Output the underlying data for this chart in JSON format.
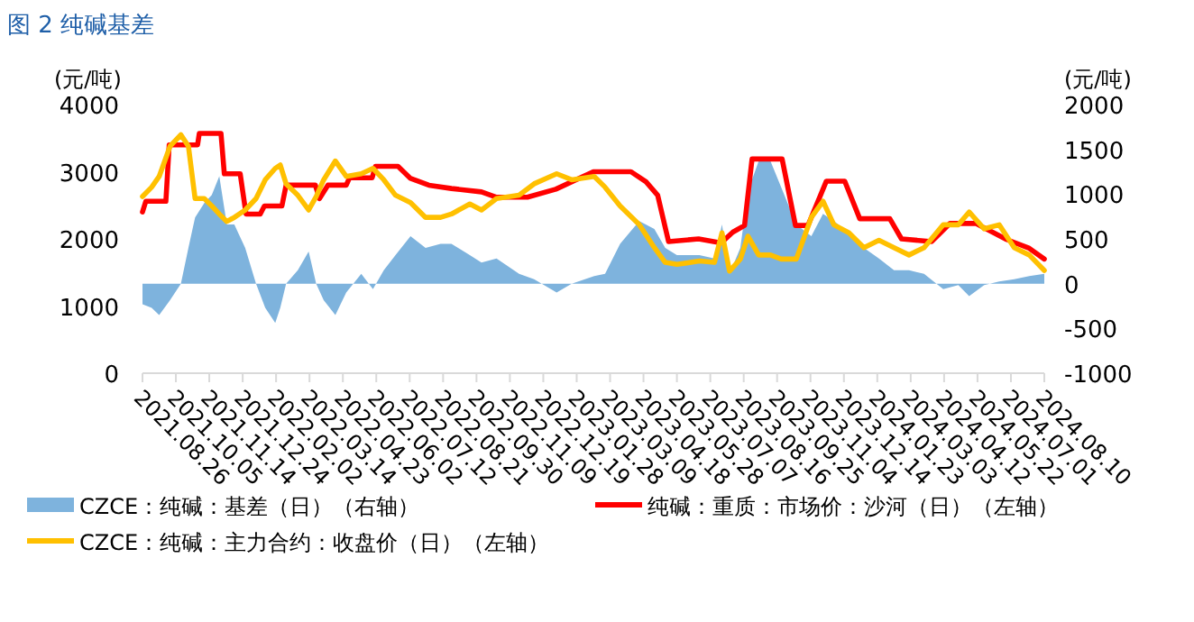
{
  "chart_data": {
    "type": "line",
    "title": "图 2  纯碱基差",
    "ylabel": "(元/吨)",
    "y2label": "(元/吨)",
    "legend": "bottom",
    "grid": false,
    "marker": "none",
    "line_style": "solid",
    "xlim": [
      "2021-08-26",
      "2024-08-10"
    ],
    "xticks": [
      {
        "value": "2021-08-26",
        "label": "2021.08.26"
      },
      {
        "value": "2021-10-05",
        "label": "2021.10.05"
      },
      {
        "value": "2021-11-14",
        "label": "2021.11.14"
      },
      {
        "value": "2021-12-24",
        "label": "2021.12.24"
      },
      {
        "value": "2022-02-02",
        "label": "2022.02.02"
      },
      {
        "value": "2022-03-14",
        "label": "2022.03.14"
      },
      {
        "value": "2022-04-23",
        "label": "2022.04.23"
      },
      {
        "value": "2022-06-02",
        "label": "2022.06.02"
      },
      {
        "value": "2022-07-12",
        "label": "2022.07.12"
      },
      {
        "value": "2022-08-21",
        "label": "2022.08.21"
      },
      {
        "value": "2022-09-30",
        "label": "2022.09.30"
      },
      {
        "value": "2022-11-09",
        "label": "2022.11.09"
      },
      {
        "value": "2022-12-19",
        "label": "2022.12.19"
      },
      {
        "value": "2023-01-28",
        "label": "2023.01.28"
      },
      {
        "value": "2023-03-09",
        "label": "2023.03.09"
      },
      {
        "value": "2023-04-18",
        "label": "2023.04.18"
      },
      {
        "value": "2023-05-28",
        "label": "2023.05.28"
      },
      {
        "value": "2023-07-07",
        "label": "2023.07.07"
      },
      {
        "value": "2023-08-16",
        "label": "2023.08.16"
      },
      {
        "value": "2023-09-25",
        "label": "2023.09.25"
      },
      {
        "value": "2023-11-04",
        "label": "2023.11.04"
      },
      {
        "value": "2023-12-14",
        "label": "2023.12.14"
      },
      {
        "value": "2024-01-23",
        "label": "2024.01.23"
      },
      {
        "value": "2024-03-03",
        "label": "2024.03.03"
      },
      {
        "value": "2024-04-12",
        "label": "2024.04.12"
      },
      {
        "value": "2024-05-22",
        "label": "2024.05.22"
      },
      {
        "value": "2024-07-01",
        "label": "2024.07.01"
      },
      {
        "value": "2024-08-10",
        "label": "2024.08.10"
      }
    ],
    "ylim": [
      0,
      4000
    ],
    "yticks": [
      0,
      1000,
      2000,
      3000,
      4000
    ],
    "y2lim": [
      -1000,
      2000
    ],
    "y2ticks": [
      -1000,
      -500,
      0,
      500,
      1000,
      1500,
      2000
    ],
    "x": [
      "2021-08-26",
      "2021-09-06",
      "2021-09-15",
      "2021-09-28",
      "2021-10-11",
      "2021-10-20",
      "2021-10-28",
      "2021-11-08",
      "2021-11-17",
      "2021-11-26",
      "2021-12-05",
      "2021-12-14",
      "2021-12-27",
      "2022-01-09",
      "2022-01-20",
      "2022-02-01",
      "2022-02-07",
      "2022-02-14",
      "2022-02-28",
      "2022-03-13",
      "2022-03-22",
      "2022-03-31",
      "2022-04-14",
      "2022-04-27",
      "2022-05-15",
      "2022-05-29",
      "2022-06-11",
      "2022-06-25",
      "2022-07-13",
      "2022-07-31",
      "2022-08-18",
      "2022-08-31",
      "2022-09-22",
      "2022-10-06",
      "2022-10-24",
      "2022-11-20",
      "2022-12-08",
      "2023-01-04",
      "2023-01-22",
      "2023-02-18",
      "2023-03-03",
      "2023-03-21",
      "2023-04-13",
      "2023-05-01",
      "2023-05-14",
      "2023-05-28",
      "2023-06-24",
      "2023-07-12",
      "2023-07-21",
      "2023-07-30",
      "2023-08-12",
      "2023-08-21",
      "2023-09-03",
      "2023-09-17",
      "2023-09-30",
      "2023-10-18",
      "2023-11-05",
      "2023-11-19",
      "2023-12-02",
      "2023-12-20",
      "2024-01-07",
      "2024-01-25",
      "2024-02-12",
      "2024-03-01",
      "2024-03-19",
      "2024-04-11",
      "2024-04-29",
      "2024-05-12",
      "2024-05-30",
      "2024-06-17",
      "2024-07-05",
      "2024-07-23",
      "2024-08-10"
    ],
    "series": [
      {
        "name": "CZCE：纯碱：基差（日）（右轴）",
        "type": "area",
        "axis": "y2",
        "color": "#7eb3dd",
        "values": [
          -230,
          -270,
          -350,
          -185,
          0,
          400,
          740,
          900,
          990,
          1200,
          660,
          660,
          400,
          0,
          -270,
          -440,
          -270,
          0,
          150,
          360,
          0,
          -185,
          -350,
          -100,
          110,
          -60,
          150,
          320,
          530,
          400,
          445,
          445,
          320,
          235,
          280,
          110,
          50,
          -100,
          0,
          85,
          110,
          445,
          700,
          610,
          400,
          320,
          320,
          280,
          660,
          110,
          400,
          1030,
          1370,
          1370,
          1075,
          660,
          530,
          780,
          700,
          570,
          400,
          280,
          150,
          150,
          110,
          -60,
          -15,
          -140,
          -15,
          25,
          50,
          85,
          110
        ]
      },
      {
        "name": "纯碱：重质：市场价：沙河（日）（左轴）",
        "color": "#ff0000",
        "x": [
          "2021-08-26",
          "2021-08-30",
          "2021-09-23",
          "2021-09-27",
          "2021-10-31",
          "2021-11-02",
          "2021-11-28",
          "2021-12-02",
          "2021-12-21",
          "2021-12-28",
          "2022-01-14",
          "2022-01-19",
          "2022-02-09",
          "2022-02-14",
          "2022-03-21",
          "2022-03-26",
          "2022-04-05",
          "2022-04-27",
          "2022-05-01",
          "2022-05-28",
          "2022-06-01",
          "2022-06-28",
          "2022-07-13",
          "2022-08-04",
          "2022-08-31",
          "2022-10-06",
          "2022-10-24",
          "2022-11-30",
          "2023-01-03",
          "2023-02-17",
          "2023-04-03",
          "2023-04-21",
          "2023-05-05",
          "2023-05-18",
          "2023-06-23",
          "2023-07-20",
          "2023-08-03",
          "2023-08-17",
          "2023-08-26",
          "2023-10-01",
          "2023-10-17",
          "2023-11-01",
          "2023-11-23",
          "2023-12-15",
          "2024-01-02",
          "2024-02-07",
          "2024-02-21",
          "2024-03-28",
          "2024-04-19",
          "2024-05-20",
          "2024-06-26",
          "2024-07-23",
          "2024-08-10"
        ],
        "values": [
          2400,
          2560,
          2560,
          3400,
          3400,
          3570,
          3570,
          2970,
          2970,
          2370,
          2370,
          2490,
          2490,
          2800,
          2800,
          2600,
          2800,
          2800,
          2910,
          2910,
          3080,
          3080,
          2900,
          2800,
          2750,
          2700,
          2620,
          2620,
          2740,
          3000,
          3000,
          2850,
          2650,
          1960,
          2000,
          1940,
          2100,
          2200,
          3190,
          3190,
          2200,
          2200,
          2860,
          2860,
          2300,
          2300,
          2000,
          1960,
          2230,
          2230,
          1990,
          1860,
          1700
        ]
      },
      {
        "name": "CZCE：纯碱：主力合约：收盘价（日）（左轴）",
        "color": "#ffc000",
        "values": [
          2630,
          2770,
          2930,
          3380,
          3550,
          3380,
          2600,
          2600,
          2490,
          2370,
          2260,
          2320,
          2430,
          2600,
          2880,
          3050,
          3100,
          2820,
          2650,
          2430,
          2630,
          2880,
          3160,
          2930,
          2970,
          3050,
          2880,
          2650,
          2540,
          2320,
          2320,
          2370,
          2520,
          2430,
          2600,
          2650,
          2820,
          2970,
          2880,
          2930,
          2770,
          2490,
          2210,
          1870,
          1650,
          1620,
          1670,
          1650,
          2090,
          1520,
          1700,
          2040,
          1760,
          1760,
          1700,
          1700,
          2320,
          2560,
          2210,
          2090,
          1870,
          1980,
          1870,
          1760,
          1870,
          2210,
          2210,
          2400,
          2150,
          2210,
          1870,
          1760,
          1530
        ]
      }
    ]
  }
}
